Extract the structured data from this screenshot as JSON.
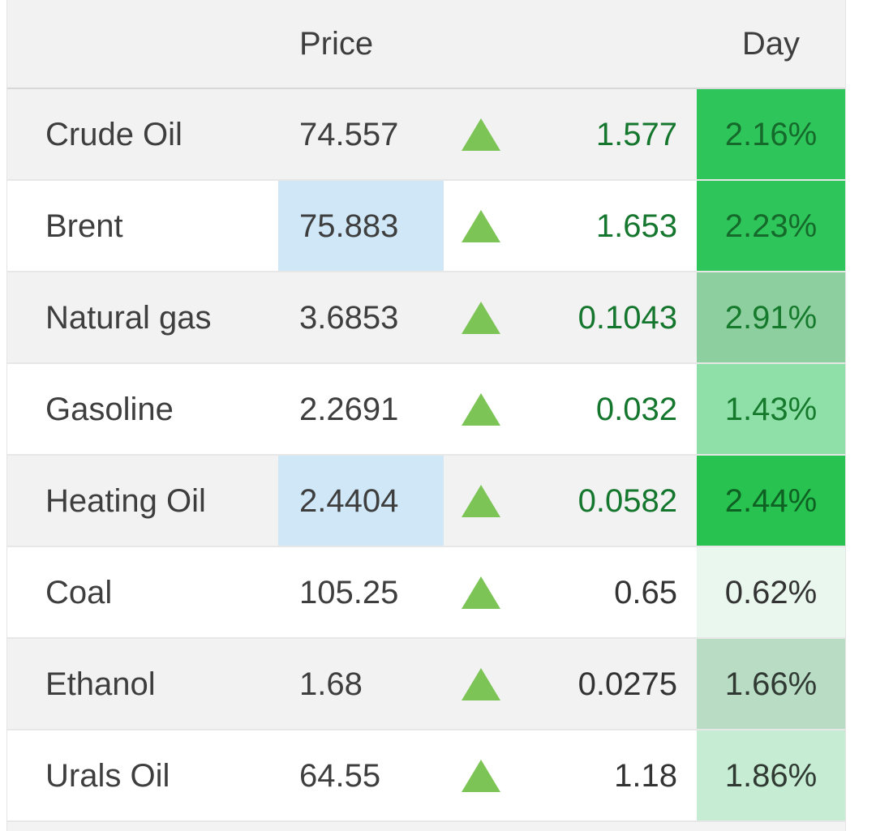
{
  "header": {
    "price_label": "Price",
    "day_label": "Day"
  },
  "colors": {
    "triangle_green": "#7cc455",
    "flash_blue": "#cfe7f6",
    "row_stripe_gray": "#f2f2f2",
    "row_white": "#ffffff",
    "change_green": "#15762d",
    "change_dark": "#333333",
    "day_bright_green": "#2ec55a"
  },
  "rows": [
    {
      "name": "Crude Oil",
      "price": "74.557",
      "change": "1.577",
      "day": "2.16%",
      "row_bg": "#f2f2f2",
      "change_color": "#15762d",
      "day_bg": "#2ec55a",
      "day_color": "#156a2b"
    },
    {
      "name": "Brent",
      "price": "75.883",
      "change": "1.653",
      "day": "2.23%",
      "row_bg": "#ffffff",
      "price_bg": "#cfe7f6",
      "change_color": "#15762d",
      "day_bg": "#2ec55a",
      "day_color": "#156a2b"
    },
    {
      "name": "Natural gas",
      "price": "3.6853",
      "change": "0.1043",
      "day": "2.91%",
      "row_bg": "#f2f2f2",
      "change_color": "#15762d",
      "day_bg": "#8ecfa0",
      "day_color": "#157a2b"
    },
    {
      "name": "Gasoline",
      "price": "2.2691",
      "change": "0.032",
      "day": "1.43%",
      "row_bg": "#ffffff",
      "change_color": "#15762d",
      "day_bg": "#8fdfa8",
      "day_color": "#157a2b"
    },
    {
      "name": "Heating Oil",
      "price": "2.4404",
      "change": "0.0582",
      "day": "2.44%",
      "row_bg": "#f2f2f2",
      "price_bg": "#cfe7f6",
      "change_color": "#15762d",
      "day_bg": "#27c24f",
      "day_color": "#0f6123"
    },
    {
      "name": "Coal",
      "price": "105.25",
      "change": "0.65",
      "day": "0.62%",
      "row_bg": "#ffffff",
      "change_color": "#333333",
      "day_bg": "#e9f7ee",
      "day_color": "#333333"
    },
    {
      "name": "Ethanol",
      "price": "1.68",
      "change": "0.0275",
      "day": "1.66%",
      "row_bg": "#f2f2f2",
      "change_color": "#333333",
      "day_bg": "#b9dcc5",
      "day_color": "#303a33"
    },
    {
      "name": "Urals Oil",
      "price": "64.55",
      "change": "1.18",
      "day": "1.86%",
      "row_bg": "#ffffff",
      "change_color": "#333333",
      "day_bg": "#c6edd3",
      "day_color": "#303a33"
    }
  ]
}
